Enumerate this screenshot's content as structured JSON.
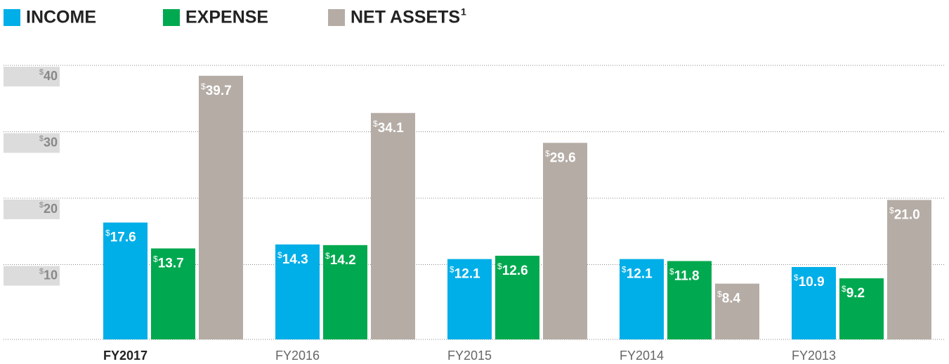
{
  "chart_data": {
    "type": "bar",
    "categories": [
      "FY2017",
      "FY2016",
      "FY2015",
      "FY2014",
      "FY2013"
    ],
    "series": [
      {
        "name": "INCOME",
        "color": "#00aee8",
        "values": [
          17.6,
          14.3,
          12.1,
          12.1,
          10.9
        ],
        "value_labels": [
          "$17.6",
          "$14.3",
          "$12.1",
          "$12.1",
          "$10.9"
        ]
      },
      {
        "name": "EXPENSE",
        "color": "#00a94f",
        "values": [
          13.7,
          14.2,
          12.6,
          11.8,
          9.2
        ],
        "value_labels": [
          "$13.7",
          "$14.2",
          "$12.6",
          "$11.8",
          "$9.2"
        ]
      },
      {
        "name": "NET ASSETS",
        "footnote": "1",
        "color": "#b5aca5",
        "values": [
          39.7,
          34.1,
          29.6,
          8.4,
          21.0
        ],
        "value_labels": [
          "$39.7",
          "$34.1",
          "$29.6",
          "$8.4",
          "$21.0"
        ]
      }
    ],
    "ylim": [
      0,
      40
    ],
    "yticks": [
      {
        "value": 10,
        "label": "$10"
      },
      {
        "value": 20,
        "label": "$20"
      },
      {
        "value": 30,
        "label": "$30"
      },
      {
        "value": 40,
        "label": "$40"
      }
    ],
    "grid": true
  }
}
